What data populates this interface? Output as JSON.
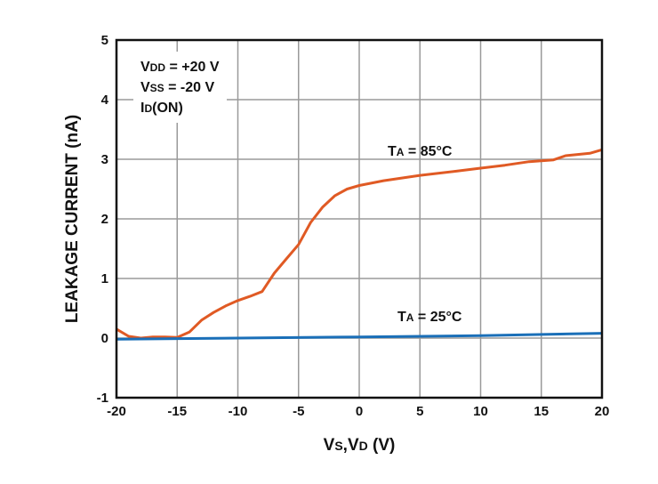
{
  "chart_data": {
    "type": "line",
    "xlabel": {
      "main1": "V",
      "sub1": "S",
      "sep": ",V",
      "sub2": "D",
      "tail": " (V)"
    },
    "ylabel": "LEAKAGE CURRENT (nA)",
    "xlim": [
      -20,
      20
    ],
    "ylim": [
      -1,
      5
    ],
    "xticks": [
      -20,
      -15,
      -10,
      -5,
      0,
      5,
      10,
      15,
      20
    ],
    "yticks": [
      -1,
      0,
      1,
      2,
      3,
      4,
      5
    ],
    "grid": true,
    "conditions": [
      {
        "main": "V",
        "sub": "DD",
        "tail": " = +20 V"
      },
      {
        "main": "V",
        "sub": "SS",
        "tail": " = -20 V"
      },
      {
        "main": "I",
        "sub": "D",
        "tail": "(ON)"
      }
    ],
    "series": [
      {
        "label": {
          "main": "T",
          "sub": "A",
          "tail": " = 85°C"
        },
        "color": "#e05a24",
        "x": [
          -20,
          -19,
          -18,
          -17,
          -16,
          -15,
          -14,
          -13,
          -12,
          -11,
          -10,
          -9,
          -8,
          -7,
          -6,
          -5,
          -4,
          -3,
          -2,
          -1,
          0,
          2,
          5,
          8,
          10,
          12,
          14,
          16,
          17,
          19,
          20
        ],
        "y": [
          0.15,
          0.03,
          0.0,
          0.02,
          0.02,
          0.01,
          0.1,
          0.3,
          0.43,
          0.54,
          0.63,
          0.7,
          0.78,
          1.09,
          1.33,
          1.57,
          1.94,
          2.2,
          2.39,
          2.5,
          2.56,
          2.64,
          2.73,
          2.8,
          2.85,
          2.9,
          2.96,
          2.99,
          3.06,
          3.1,
          3.16
        ]
      },
      {
        "label": {
          "main": "T",
          "sub": "A",
          "tail": " = 25°C"
        },
        "color": "#1a6fb8",
        "x": [
          -20,
          -10,
          0,
          10,
          20
        ],
        "y": [
          -0.02,
          0.0,
          0.02,
          0.04,
          0.08
        ]
      }
    ]
  }
}
